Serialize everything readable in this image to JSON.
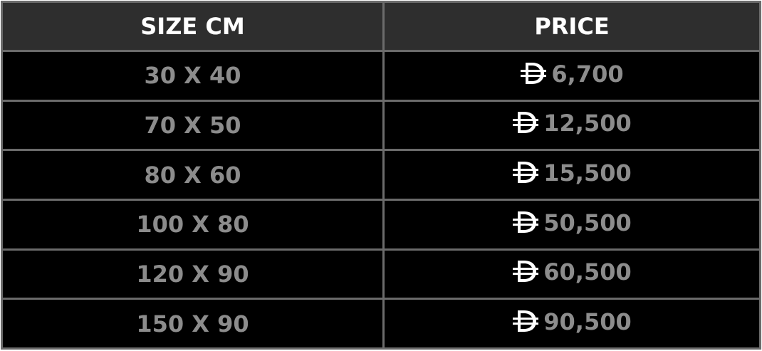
{
  "table": {
    "headers": [
      "SIZE CM",
      "PRICE"
    ],
    "currency_icon": "uae-dirham-symbol-icon",
    "rows": [
      {
        "size": "30 X 40",
        "price": "6,700"
      },
      {
        "size": "70 X 50",
        "price": "12,500"
      },
      {
        "size": "80 X 60",
        "price": "15,500"
      },
      {
        "size": "100 X 80",
        "price": "50,500"
      },
      {
        "size": "120 X 90",
        "price": "60,500"
      },
      {
        "size": "150 X 90",
        "price": "90,500"
      }
    ]
  },
  "colors": {
    "header_bg": "#2e2e2e",
    "row_bg": "#000000",
    "border": "#6b6b6b",
    "value_text": "#8c8c8c",
    "header_text": "#ffffff"
  }
}
